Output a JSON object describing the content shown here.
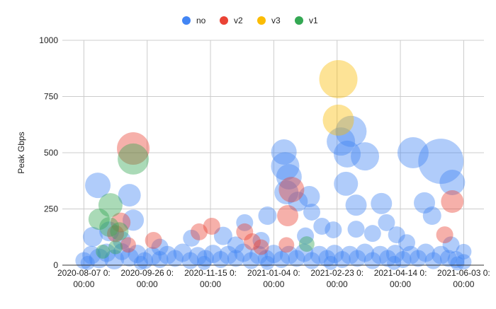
{
  "chart_data": {
    "type": "scatter",
    "subtype": "bubble",
    "title": "",
    "xlabel": "",
    "ylabel": "Peak Gbps",
    "x_unit": "days since 2020-08-07 00:00",
    "xlim": [
      -17,
      316
    ],
    "ylim": [
      0,
      1000
    ],
    "yticks": [
      "0",
      "250",
      "500",
      "750",
      "1000"
    ],
    "ytick_values": [
      0,
      250,
      500,
      750,
      1000
    ],
    "xtick_values": [
      0,
      50,
      100,
      150,
      200,
      250,
      300
    ],
    "xticks": [
      [
        "2020-08-07 0:",
        "00:00"
      ],
      [
        "2020-09-26 0:",
        "00:00"
      ],
      [
        "2020-11-15 0:",
        "00:00"
      ],
      [
        "2021-01-04 0:",
        "00:00"
      ],
      [
        "2021-02-23 0:",
        "00:00"
      ],
      [
        "2021-04-14 0:",
        "00:00"
      ],
      [
        "2021-06-03 0:",
        "00:00"
      ]
    ],
    "grid": true,
    "legend_position": "top",
    "point_format": "[x_days, peak_gbps, bubble_size]",
    "series": [
      {
        "name": "no",
        "color": "#4285f4",
        "points": [
          [
            282,
            462,
            32
          ],
          [
            260,
            500,
            22
          ],
          [
            211,
            595,
            22
          ],
          [
            203,
            550,
            20
          ],
          [
            208,
            494,
            19
          ],
          [
            222,
            484,
            20
          ],
          [
            158,
            503,
            18
          ],
          [
            159,
            440,
            20
          ],
          [
            162,
            393,
            18
          ],
          [
            160,
            324,
            17
          ],
          [
            178,
            305,
            15
          ],
          [
            11,
            355,
            18
          ],
          [
            36,
            311,
            16
          ],
          [
            39,
            200,
            15
          ],
          [
            291,
            368,
            18
          ],
          [
            269,
            277,
            15
          ],
          [
            235,
            274,
            15
          ],
          [
            207,
            362,
            17
          ],
          [
            215,
            267,
            15
          ],
          [
            127,
            189,
            12
          ],
          [
            145,
            220,
            13
          ],
          [
            7,
            126,
            14
          ],
          [
            188,
            173,
            12
          ],
          [
            197,
            157,
            12
          ],
          [
            228,
            141,
            12
          ],
          [
            247,
            135,
            12
          ],
          [
            275,
            220,
            13
          ],
          [
            239,
            189,
            12
          ],
          [
            180,
            236,
            12
          ],
          [
            169,
            283,
            14
          ],
          [
            20,
            150,
            14
          ],
          [
            30,
            110,
            13
          ],
          [
            60,
            80,
            12
          ],
          [
            85,
            120,
            12
          ],
          [
            110,
            130,
            13
          ],
          [
            120,
            90,
            12
          ],
          [
            140,
            110,
            12
          ],
          [
            175,
            130,
            12
          ],
          [
            255,
            100,
            12
          ],
          [
            290,
            90,
            12
          ],
          [
            300,
            60,
            11
          ],
          [
            215,
            160,
            12
          ],
          [
            0,
            20,
            12
          ],
          [
            6,
            45,
            13
          ],
          [
            12,
            30,
            14
          ],
          [
            18,
            55,
            13
          ],
          [
            24,
            25,
            14
          ],
          [
            30,
            60,
            12
          ],
          [
            36,
            35,
            13
          ],
          [
            42,
            50,
            13
          ],
          [
            48,
            20,
            12
          ],
          [
            54,
            40,
            13
          ],
          [
            60,
            25,
            12
          ],
          [
            66,
            45,
            13
          ],
          [
            72,
            30,
            12
          ],
          [
            78,
            55,
            13
          ],
          [
            84,
            20,
            12
          ],
          [
            90,
            40,
            13
          ],
          [
            96,
            30,
            12
          ],
          [
            102,
            50,
            13
          ],
          [
            108,
            25,
            12
          ],
          [
            114,
            45,
            13
          ],
          [
            120,
            30,
            12
          ],
          [
            126,
            55,
            13
          ],
          [
            132,
            20,
            12
          ],
          [
            138,
            45,
            13
          ],
          [
            144,
            30,
            12
          ],
          [
            150,
            50,
            13
          ],
          [
            156,
            25,
            12
          ],
          [
            162,
            45,
            13
          ],
          [
            168,
            30,
            12
          ],
          [
            174,
            55,
            13
          ],
          [
            180,
            20,
            12
          ],
          [
            186,
            45,
            13
          ],
          [
            192,
            30,
            12
          ],
          [
            198,
            50,
            13
          ],
          [
            204,
            25,
            12
          ],
          [
            210,
            45,
            13
          ],
          [
            216,
            30,
            12
          ],
          [
            222,
            55,
            13
          ],
          [
            228,
            20,
            12
          ],
          [
            234,
            45,
            13
          ],
          [
            240,
            30,
            12
          ],
          [
            246,
            50,
            13
          ],
          [
            252,
            25,
            12
          ],
          [
            258,
            45,
            13
          ],
          [
            264,
            30,
            12
          ],
          [
            270,
            55,
            13
          ],
          [
            276,
            20,
            12
          ],
          [
            282,
            45,
            13
          ],
          [
            288,
            30,
            12
          ],
          [
            294,
            25,
            12
          ],
          [
            300,
            15,
            11
          ],
          [
            3,
            10,
            10
          ],
          [
            45,
            10,
            10
          ],
          [
            95,
            10,
            10
          ],
          [
            145,
            10,
            10
          ],
          [
            195,
            10,
            10
          ],
          [
            245,
            10,
            10
          ],
          [
            295,
            8,
            10
          ]
        ]
      },
      {
        "name": "v2",
        "color": "#ea4335",
        "points": [
          [
            39,
            519,
            23
          ],
          [
            164,
            336,
            18
          ],
          [
            161,
            220,
            15
          ],
          [
            29,
            190,
            14
          ],
          [
            291,
            283,
            16
          ],
          [
            55,
            110,
            12
          ],
          [
            91,
            148,
            12
          ],
          [
            101,
            173,
            12
          ],
          [
            127,
            148,
            12
          ],
          [
            133,
            104,
            12
          ],
          [
            285,
            135,
            12
          ],
          [
            25,
            140,
            12
          ],
          [
            35,
            90,
            11
          ],
          [
            140,
            80,
            11
          ],
          [
            160,
            90,
            11
          ]
        ]
      },
      {
        "name": "v3",
        "color": "#fbbc04",
        "points": [
          [
            201,
            827,
            27
          ],
          [
            201,
            645,
            22
          ]
        ]
      },
      {
        "name": "v1",
        "color": "#34a853",
        "points": [
          [
            39,
            472,
            22
          ],
          [
            21,
            267,
            17
          ],
          [
            12,
            204,
            15
          ],
          [
            176,
            94,
            11
          ],
          [
            20,
            170,
            14
          ],
          [
            28,
            150,
            13
          ],
          [
            15,
            60,
            10
          ],
          [
            25,
            80,
            10
          ]
        ]
      }
    ]
  }
}
